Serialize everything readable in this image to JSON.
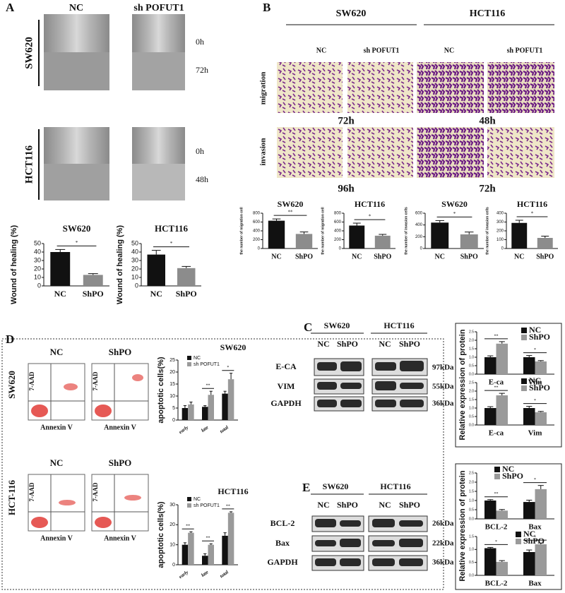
{
  "panels": {
    "A": {
      "letter": "A",
      "cols": [
        "NC",
        "sh POFUT1"
      ],
      "rows": [
        "SW620",
        "HCT116"
      ],
      "times": [
        "0h",
        "72h",
        "0h",
        "48h"
      ]
    },
    "B": {
      "letter": "B",
      "lines": [
        "SW620",
        "HCT116"
      ],
      "cols": [
        "NC",
        "sh POFUT1",
        "NC",
        "sh POFUT1"
      ],
      "rows": [
        "migration",
        "invasion"
      ],
      "times": [
        "72h",
        "48h",
        "96h",
        "72h"
      ]
    },
    "C": {
      "letter": "C",
      "lines": [
        "SW620",
        "HCT116"
      ],
      "cols": [
        "NC",
        "ShPO",
        "NC",
        "ShPO"
      ],
      "rows": [
        "E-CA",
        "VIM",
        "GAPDH"
      ],
      "sizes": [
        "97kDa",
        "55kDa",
        "36kDa"
      ]
    },
    "D": {
      "letter": "D",
      "cols": [
        "NC",
        "ShPO",
        "NC",
        "ShPO"
      ],
      "rows": [
        "SW620",
        "HCT-116"
      ],
      "y_axis": [
        "7-AAD",
        "7-AAD",
        "7-AAD",
        "7-AAD"
      ],
      "x_axis": [
        "Annexin V",
        "Annexin V",
        "Annexin V",
        "Annexin V"
      ]
    },
    "E": {
      "letter": "E",
      "lines": [
        "SW620",
        "HCT116"
      ],
      "cols": [
        "NC",
        "ShPO",
        "NC",
        "ShPO"
      ],
      "rows": [
        "BCL-2",
        "Bax",
        "GAPDH"
      ],
      "sizes": [
        "26kDa",
        "22kDa",
        "36kDa"
      ]
    }
  },
  "chart_data": [
    {
      "type": "bar",
      "title": "SW620",
      "ylabel": "Wound of healing (%)",
      "categories": [
        "NC",
        "ShPO"
      ],
      "values": [
        40,
        13
      ],
      "errors": [
        3,
        1.5
      ],
      "colors": [
        "#111111",
        "#8c8c8c"
      ],
      "significance": "*",
      "ylim": [
        0,
        50
      ],
      "yticks": [
        0,
        10,
        20,
        30,
        40,
        50
      ]
    },
    {
      "type": "bar",
      "title": "HCT116",
      "ylabel": "Wound of healing (%)",
      "categories": [
        "NC",
        "ShPO"
      ],
      "values": [
        37,
        21
      ],
      "errors": [
        5,
        2
      ],
      "colors": [
        "#111111",
        "#8c8c8c"
      ],
      "significance": "*",
      "ylim": [
        0,
        50
      ],
      "yticks": [
        0,
        10,
        20,
        30,
        40,
        50
      ]
    },
    {
      "type": "bar",
      "title": "SW620",
      "ylabel": "the number of migration cell",
      "categories": [
        "NC",
        "ShPO"
      ],
      "values": [
        630,
        330
      ],
      "errors": [
        40,
        45
      ],
      "colors": [
        "#111111",
        "#8c8c8c"
      ],
      "significance": "**",
      "ylim": [
        0,
        800
      ],
      "yticks": [
        0,
        200,
        400,
        600,
        800
      ]
    },
    {
      "type": "bar",
      "title": "HCT116",
      "ylabel": "the number of migration cell",
      "categories": [
        "NC",
        "ShPO"
      ],
      "values": [
        520,
        290
      ],
      "errors": [
        55,
        30
      ],
      "colors": [
        "#111111",
        "#8c8c8c"
      ],
      "significance": "*",
      "ylim": [
        0,
        800
      ],
      "yticks": [
        0,
        200,
        400,
        600,
        800
      ]
    },
    {
      "type": "bar",
      "title": "SW620",
      "ylabel": "the number of invasion cells",
      "categories": [
        "NC",
        "ShPO"
      ],
      "values": [
        440,
        240
      ],
      "errors": [
        35,
        40
      ],
      "colors": [
        "#111111",
        "#8c8c8c"
      ],
      "significance": "*",
      "ylim": [
        0,
        600
      ],
      "yticks": [
        0,
        200,
        400,
        600
      ]
    },
    {
      "type": "bar",
      "title": "HCT116",
      "ylabel": "the number of invasion cells",
      "categories": [
        "NC",
        "ShPO"
      ],
      "values": [
        290,
        120
      ],
      "errors": [
        30,
        20
      ],
      "colors": [
        "#111111",
        "#8c8c8c"
      ],
      "significance": "*",
      "ylim": [
        0,
        400
      ],
      "yticks": [
        0,
        100,
        200,
        300,
        400
      ]
    },
    {
      "type": "bar",
      "title": "SW620",
      "ylabel": "apoptotic cells(%)",
      "categories": [
        "early",
        "late",
        "total"
      ],
      "series": [
        {
          "name": "NC",
          "color": "#111111",
          "values": [
            5,
            5.5,
            11
          ],
          "errors": [
            1,
            0.5,
            1
          ]
        },
        {
          "name": "sh POFUT1",
          "color": "#9a9a9a",
          "values": [
            6.5,
            10.5,
            17
          ],
          "errors": [
            1,
            1.5,
            2.5
          ]
        }
      ],
      "significance": [
        null,
        "**",
        "*"
      ],
      "ylim": [
        0,
        25
      ],
      "yticks": [
        0,
        5,
        10,
        15,
        20,
        25
      ]
    },
    {
      "type": "bar",
      "title": "HCT116",
      "ylabel": "apoptotic cells(%)",
      "categories": [
        "early",
        "late",
        "total"
      ],
      "series": [
        {
          "name": "NC",
          "color": "#111111",
          "values": [
            10,
            4.5,
            14.5
          ],
          "errors": [
            1,
            1,
            1.5
          ]
        },
        {
          "name": "sh POFUT1",
          "color": "#9a9a9a",
          "values": [
            16,
            10,
            26
          ],
          "errors": [
            0.5,
            0.5,
            0.5
          ]
        }
      ],
      "significance": [
        "**",
        "**",
        "**"
      ],
      "ylim": [
        0,
        30
      ],
      "yticks": [
        0,
        10,
        20,
        30
      ]
    },
    {
      "type": "bar",
      "ylabel": "Relative expression  of protein",
      "categories": [
        "E-ca",
        "Vim"
      ],
      "series": [
        {
          "name": "NC",
          "color": "#111111",
          "values": [
            1.0,
            1.0
          ],
          "errors": [
            0.08,
            0.1
          ]
        },
        {
          "name": "ShPO",
          "color": "#9a9a9a",
          "values": [
            1.8,
            0.75
          ],
          "errors": [
            0.12,
            0.05
          ]
        }
      ],
      "significance": [
        "**",
        "*"
      ],
      "ylim": [
        0,
        2.5
      ],
      "yticks": [
        {
          "value": 0,
          "label": "0.0"
        },
        0.5,
        {
          "value": 1,
          "label": "1.0"
        },
        1.5,
        {
          "value": 2,
          "label": "2.0"
        },
        2.5
      ]
    },
    {
      "type": "bar",
      "categories": [
        "E-ca",
        "Vim"
      ],
      "series": [
        {
          "name": "NC",
          "color": "#111111",
          "values": [
            1.0,
            1.0
          ],
          "errors": [
            0.08,
            0.1
          ]
        },
        {
          "name": "ShPO",
          "color": "#9a9a9a",
          "values": [
            1.75,
            0.75
          ],
          "errors": [
            0.12,
            0.05
          ]
        }
      ],
      "significance": [
        "**",
        "*"
      ],
      "ylim": [
        0,
        2.5
      ],
      "yticks": [
        {
          "value": 0,
          "label": "0.0"
        },
        0.5,
        {
          "value": 1,
          "label": "1.0"
        },
        1.5,
        {
          "value": 2,
          "label": "2.0"
        },
        2.5
      ]
    },
    {
      "type": "bar",
      "ylabel": "Relative expression  of protein",
      "categories": [
        "BCL-2",
        "Bax"
      ],
      "series": [
        {
          "name": "NC",
          "color": "#111111",
          "values": [
            1.0,
            0.92
          ],
          "errors": [
            0.05,
            0.1
          ]
        },
        {
          "name": "ShPO",
          "color": "#9a9a9a",
          "values": [
            0.45,
            1.62
          ],
          "errors": [
            0.06,
            0.2
          ]
        }
      ],
      "significance": [
        "**",
        "*"
      ],
      "ylim": [
        0,
        2.5
      ],
      "yticks": [
        {
          "value": 0,
          "label": "0.0"
        },
        0.5,
        {
          "value": 1,
          "label": "1.0"
        },
        1.5,
        {
          "value": 2,
          "label": "2.0"
        },
        2.5
      ]
    },
    {
      "type": "bar",
      "categories": [
        "BCL-2",
        "Bax"
      ],
      "series": [
        {
          "name": "NC",
          "color": "#111111",
          "values": [
            1.05,
            0.9
          ],
          "errors": [
            0.03,
            0.08
          ]
        },
        {
          "name": "ShPO",
          "color": "#9a9a9a",
          "values": [
            0.52,
            1.2
          ],
          "errors": [
            0.05,
            0.05
          ]
        }
      ],
      "significance": [
        "*",
        "*"
      ],
      "ylim": [
        0,
        1.5
      ],
      "yticks": [
        {
          "value": 0,
          "label": "0.0"
        },
        0.5,
        {
          "value": 1,
          "label": "1.0"
        },
        1.5
      ]
    }
  ]
}
